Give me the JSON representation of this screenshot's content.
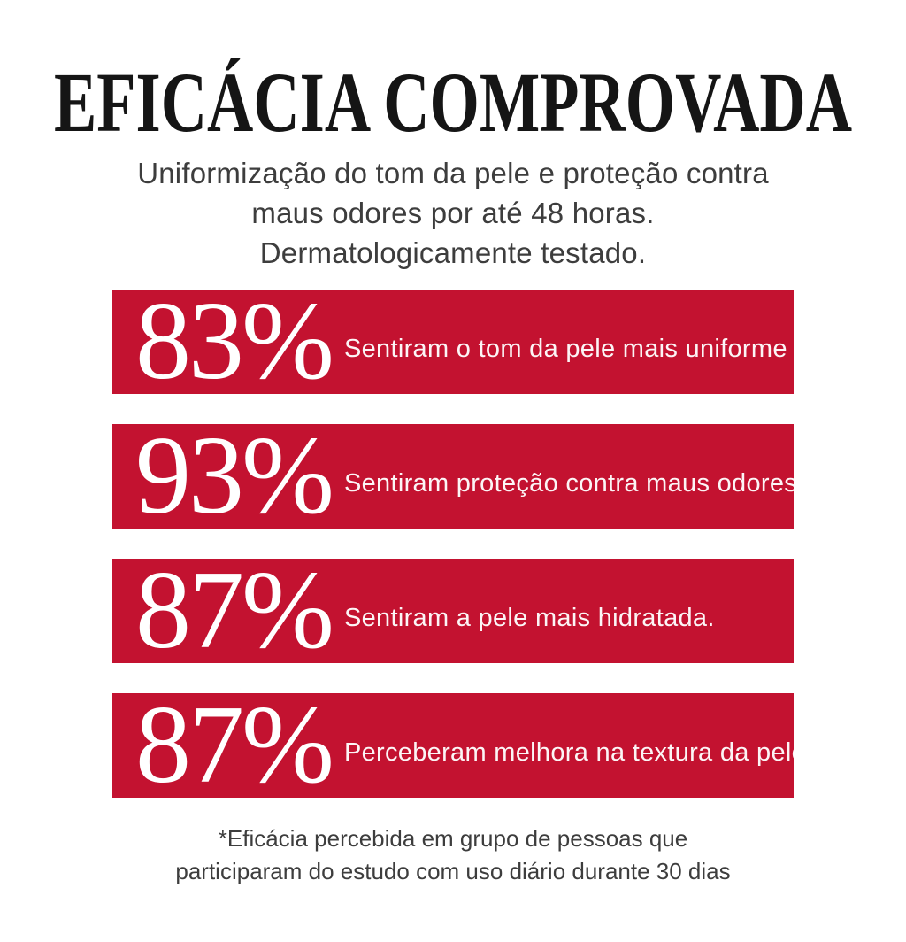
{
  "header": {
    "title": "EFICÁCIA COMPROVADA",
    "subtitle_lines": [
      "Uniformização do tom da pele e proteção contra",
      "maus odores por até 48 horas.",
      "Dermatologicamente testado."
    ]
  },
  "stats": [
    {
      "value": "83%",
      "label": "Sentiram o tom da pele mais uniforme"
    },
    {
      "value": "93%",
      "label": "Sentiram proteção contra maus odores"
    },
    {
      "value": "87%",
      "label": "Sentiram a pele mais hidratada."
    },
    {
      "value": "87%",
      "label": "Perceberam melhora na textura da pele"
    }
  ],
  "footnote": {
    "lines": [
      "*Eficácia percebida em grupo de pessoas que",
      "participaram do estudo com uso diário durante 30 dias"
    ]
  },
  "colors": {
    "bar-red": "#C31230",
    "title-ink": "#151515",
    "body-gray": "#3D3D3D",
    "bar-text": "#FFFFFF",
    "background": "#FFFFFF"
  },
  "chart_data": {
    "type": "bar",
    "title": "EFICÁCIA COMPROVADA",
    "subtitle": "Uniformização do tom da pele e proteção contra maus odores por até 48 horas. Dermatologicamente testado.",
    "categories": [
      "Sentiram o tom da pele mais uniforme",
      "Sentiram proteção contra maus odores",
      "Sentiram a pele mais hidratada.",
      "Perceberam melhora na textura da pele"
    ],
    "values": [
      83,
      93,
      87,
      87
    ],
    "unit": "%",
    "value_range": [
      0,
      100
    ],
    "bar_color": "#C31230",
    "value_label_color": "#FFFFFF",
    "legend": "none",
    "grid": "off",
    "layout": "horizontal equal-width stat bars with large percentage labels",
    "footnote": "*Eficácia percebida em grupo de pessoas que participaram do estudo com uso diário durante 30 dias"
  }
}
